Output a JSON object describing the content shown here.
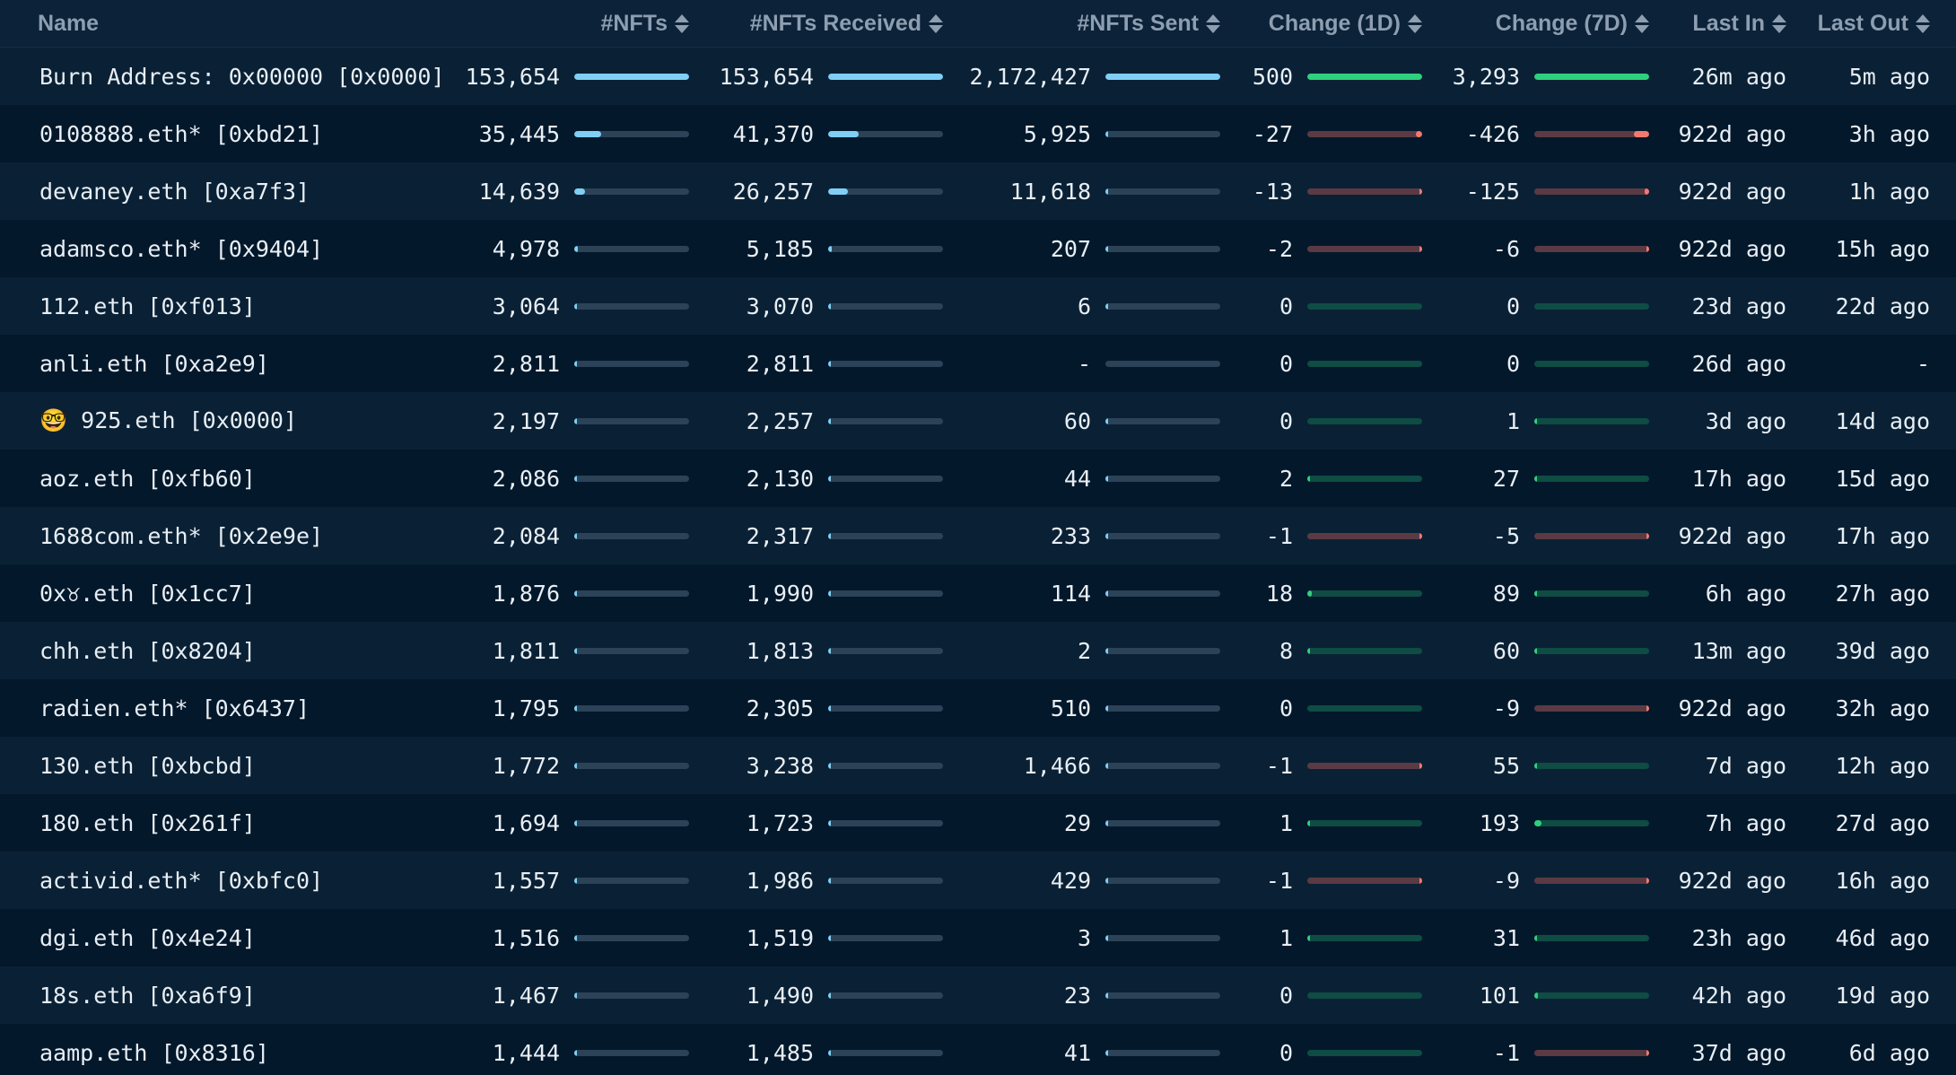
{
  "colors": {
    "background": "#04182b",
    "row_alt": "#0a2135",
    "header_text": "#8e9eb1",
    "bar_blue": "#7fcff5",
    "bar_green": "#2fd07d",
    "bar_red": "#f3796f"
  },
  "header": {
    "name": "Name",
    "nfts": "#NFTs",
    "received": "#NFTs Received",
    "sent": "#NFTs Sent",
    "change1d": "Change (1D)",
    "change7d": "Change (7D)",
    "last_in": "Last In",
    "last_out": "Last Out"
  },
  "rows": [
    {
      "name": "Burn Address: 0x00000 [0x0000]",
      "nfts": "153,654",
      "nfts_v": 153654,
      "received": "153,654",
      "received_v": 153654,
      "sent": "2,172,427",
      "sent_v": 2172427,
      "c1d": "500",
      "c1d_v": 500,
      "c7d": "3,293",
      "c7d_v": 3293,
      "last_in": "26m ago",
      "last_out": "5m ago"
    },
    {
      "name": "0108888.eth* [0xbd21]",
      "nfts": "35,445",
      "nfts_v": 35445,
      "received": "41,370",
      "received_v": 41370,
      "sent": "5,925",
      "sent_v": 5925,
      "c1d": "-27",
      "c1d_v": -27,
      "c7d": "-426",
      "c7d_v": -426,
      "last_in": "922d ago",
      "last_out": "3h ago"
    },
    {
      "name": "devaney.eth [0xa7f3]",
      "nfts": "14,639",
      "nfts_v": 14639,
      "received": "26,257",
      "received_v": 26257,
      "sent": "11,618",
      "sent_v": 11618,
      "c1d": "-13",
      "c1d_v": -13,
      "c7d": "-125",
      "c7d_v": -125,
      "last_in": "922d ago",
      "last_out": "1h ago"
    },
    {
      "name": "adamsco.eth* [0x9404]",
      "nfts": "4,978",
      "nfts_v": 4978,
      "received": "5,185",
      "received_v": 5185,
      "sent": "207",
      "sent_v": 207,
      "c1d": "-2",
      "c1d_v": -2,
      "c7d": "-6",
      "c7d_v": -6,
      "last_in": "922d ago",
      "last_out": "15h ago"
    },
    {
      "name": "112.eth [0xf013]",
      "nfts": "3,064",
      "nfts_v": 3064,
      "received": "3,070",
      "received_v": 3070,
      "sent": "6",
      "sent_v": 6,
      "c1d": "0",
      "c1d_v": 0,
      "c7d": "0",
      "c7d_v": 0,
      "last_in": "23d ago",
      "last_out": "22d ago"
    },
    {
      "name": "anli.eth [0xa2e9]",
      "nfts": "2,811",
      "nfts_v": 2811,
      "received": "2,811",
      "received_v": 2811,
      "sent": "-",
      "sent_v": 0,
      "c1d": "0",
      "c1d_v": 0,
      "c7d": "0",
      "c7d_v": 0,
      "last_in": "26d ago",
      "last_out": "-"
    },
    {
      "name": "🤓 925.eth [0x0000]",
      "nfts": "2,197",
      "nfts_v": 2197,
      "received": "2,257",
      "received_v": 2257,
      "sent": "60",
      "sent_v": 60,
      "c1d": "0",
      "c1d_v": 0,
      "c7d": "1",
      "c7d_v": 1,
      "last_in": "3d ago",
      "last_out": "14d ago"
    },
    {
      "name": "aoz.eth [0xfb60]",
      "nfts": "2,086",
      "nfts_v": 2086,
      "received": "2,130",
      "received_v": 2130,
      "sent": "44",
      "sent_v": 44,
      "c1d": "2",
      "c1d_v": 2,
      "c7d": "27",
      "c7d_v": 27,
      "last_in": "17h ago",
      "last_out": "15d ago"
    },
    {
      "name": "1688com.eth* [0x2e9e]",
      "nfts": "2,084",
      "nfts_v": 2084,
      "received": "2,317",
      "received_v": 2317,
      "sent": "233",
      "sent_v": 233,
      "c1d": "-1",
      "c1d_v": -1,
      "c7d": "-5",
      "c7d_v": -5,
      "last_in": "922d ago",
      "last_out": "17h ago"
    },
    {
      "name": "0x♉.eth [0x1cc7]",
      "nfts": "1,876",
      "nfts_v": 1876,
      "received": "1,990",
      "received_v": 1990,
      "sent": "114",
      "sent_v": 114,
      "c1d": "18",
      "c1d_v": 18,
      "c7d": "89",
      "c7d_v": 89,
      "last_in": "6h ago",
      "last_out": "27h ago"
    },
    {
      "name": "chh.eth [0x8204]",
      "nfts": "1,811",
      "nfts_v": 1811,
      "received": "1,813",
      "received_v": 1813,
      "sent": "2",
      "sent_v": 2,
      "c1d": "8",
      "c1d_v": 8,
      "c7d": "60",
      "c7d_v": 60,
      "last_in": "13m ago",
      "last_out": "39d ago"
    },
    {
      "name": "radien.eth* [0x6437]",
      "nfts": "1,795",
      "nfts_v": 1795,
      "received": "2,305",
      "received_v": 2305,
      "sent": "510",
      "sent_v": 510,
      "c1d": "0",
      "c1d_v": 0,
      "c7d": "-9",
      "c7d_v": -9,
      "last_in": "922d ago",
      "last_out": "32h ago"
    },
    {
      "name": "130.eth [0xbcbd]",
      "nfts": "1,772",
      "nfts_v": 1772,
      "received": "3,238",
      "received_v": 3238,
      "sent": "1,466",
      "sent_v": 1466,
      "c1d": "-1",
      "c1d_v": -1,
      "c7d": "55",
      "c7d_v": 55,
      "last_in": "7d ago",
      "last_out": "12h ago"
    },
    {
      "name": "180.eth [0x261f]",
      "nfts": "1,694",
      "nfts_v": 1694,
      "received": "1,723",
      "received_v": 1723,
      "sent": "29",
      "sent_v": 29,
      "c1d": "1",
      "c1d_v": 1,
      "c7d": "193",
      "c7d_v": 193,
      "last_in": "7h ago",
      "last_out": "27d ago"
    },
    {
      "name": "activid.eth* [0xbfc0]",
      "nfts": "1,557",
      "nfts_v": 1557,
      "received": "1,986",
      "received_v": 1986,
      "sent": "429",
      "sent_v": 429,
      "c1d": "-1",
      "c1d_v": -1,
      "c7d": "-9",
      "c7d_v": -9,
      "last_in": "922d ago",
      "last_out": "16h ago"
    },
    {
      "name": "dgi.eth [0x4e24]",
      "nfts": "1,516",
      "nfts_v": 1516,
      "received": "1,519",
      "received_v": 1519,
      "sent": "3",
      "sent_v": 3,
      "c1d": "1",
      "c1d_v": 1,
      "c7d": "31",
      "c7d_v": 31,
      "last_in": "23h ago",
      "last_out": "46d ago"
    },
    {
      "name": "18s.eth [0xa6f9]",
      "nfts": "1,467",
      "nfts_v": 1467,
      "received": "1,490",
      "received_v": 1490,
      "sent": "23",
      "sent_v": 23,
      "c1d": "0",
      "c1d_v": 0,
      "c7d": "101",
      "c7d_v": 101,
      "last_in": "42h ago",
      "last_out": "19d ago"
    },
    {
      "name": "aamp.eth [0x8316]",
      "nfts": "1,444",
      "nfts_v": 1444,
      "received": "1,485",
      "received_v": 1485,
      "sent": "41",
      "sent_v": 41,
      "c1d": "0",
      "c1d_v": 0,
      "c7d": "-1",
      "c7d_v": -1,
      "last_in": "37d ago",
      "last_out": "6d ago"
    }
  ]
}
